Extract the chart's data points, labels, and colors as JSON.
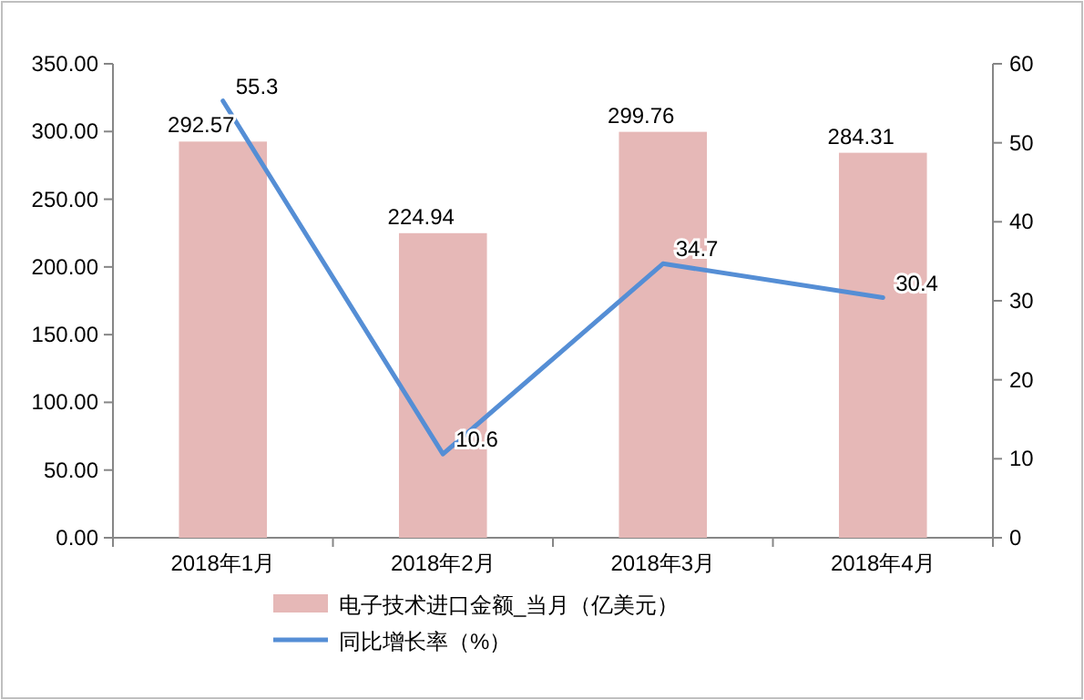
{
  "chart_data": {
    "type": "bar",
    "categories": [
      "2018年1月",
      "2018年2月",
      "2018年3月",
      "2018年4月"
    ],
    "series": [
      {
        "name": "电子技术进口金额_当月（亿美元）",
        "color": "#e6b8b7",
        "values": [
          292.57,
          224.94,
          299.76,
          284.31
        ]
      },
      {
        "name": "同比增长率（%）",
        "type": "line",
        "axis": "y2",
        "color": "#558ed5",
        "values": [
          55.3,
          10.6,
          34.7,
          30.4
        ]
      }
    ],
    "ylim": [
      0,
      350
    ],
    "yticks": [
      {
        "value": 0,
        "label": "0.00"
      },
      {
        "value": 50,
        "label": "50.00"
      },
      {
        "value": 100,
        "label": "100.00"
      },
      {
        "value": 150,
        "label": "150.00"
      },
      {
        "value": 200,
        "label": "200.00"
      },
      {
        "value": 250,
        "label": "250.00"
      },
      {
        "value": 300,
        "label": "300.00"
      },
      {
        "value": 350,
        "label": "350.00"
      }
    ],
    "y2lim": [
      0,
      60
    ],
    "y2ticks": [
      0,
      10,
      20,
      30,
      40,
      50,
      60
    ],
    "data_labels": true,
    "legend": "bottom"
  }
}
